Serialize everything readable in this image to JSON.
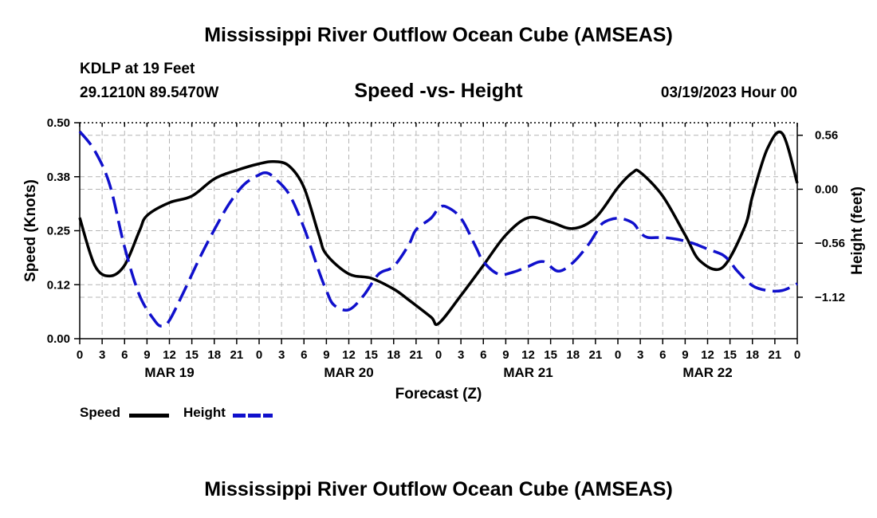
{
  "header": {
    "title": "Mississippi River Outflow Ocean Cube (AMSEAS)",
    "station": "KDLP at 19 Feet",
    "coords": "29.1210N  89.5470W",
    "subtitle": "Speed -vs- Height",
    "date": "03/19/2023 Hour 00"
  },
  "footer": {
    "title": "Mississippi River Outflow Ocean Cube (AMSEAS)"
  },
  "legend": {
    "speed": "Speed",
    "height": "Height"
  },
  "colors": {
    "speed": "#000000",
    "height": "#1010cc",
    "grid": "#b4b4b4"
  },
  "chart_data": {
    "type": "line",
    "title": "Speed -vs- Height",
    "xlabel": "Forecast (Z)",
    "ylabel": "Speed (Knots)",
    "y2label": "Height (feet)",
    "xlim": [
      0,
      96
    ],
    "ylim": [
      0,
      0.5
    ],
    "y2lim": [
      -1.55,
      0.69
    ],
    "yticks": [
      "0.00",
      "0.12",
      "0.25",
      "0.38",
      "0.50"
    ],
    "y2ticks": [
      {
        "value": 0.56,
        "label": "0.56"
      },
      {
        "value": 0.0,
        "label": "0.00"
      },
      {
        "value": -0.56,
        "label": "−0.56"
      },
      {
        "value": -1.12,
        "label": "−1.12"
      }
    ],
    "xticks": [
      "0",
      "3",
      "6",
      "9",
      "12",
      "15",
      "18",
      "21",
      "0",
      "3",
      "6",
      "9",
      "12",
      "15",
      "18",
      "21",
      "0",
      "3",
      "6",
      "9",
      "12",
      "15",
      "18",
      "21",
      "0",
      "3",
      "6",
      "9",
      "12",
      "15",
      "18",
      "21",
      "0"
    ],
    "dates": [
      {
        "hour": 12,
        "label": "MAR 19"
      },
      {
        "hour": 36,
        "label": "MAR 20"
      },
      {
        "hour": 60,
        "label": "MAR 21"
      },
      {
        "hour": 84,
        "label": "MAR 22"
      }
    ],
    "series": [
      {
        "name": "Speed",
        "axis": "left",
        "x": [
          0,
          2,
          4,
          6,
          8,
          9,
          12,
          15,
          18,
          21,
          24,
          26,
          28,
          30,
          32,
          33,
          36,
          39,
          42,
          44,
          47,
          48,
          51,
          54,
          57,
          60,
          63,
          66,
          69,
          72,
          74,
          75,
          78,
          81,
          83,
          86,
          89,
          90,
          92,
          94,
          96
        ],
        "values": [
          0.28,
          0.17,
          0.145,
          0.17,
          0.25,
          0.285,
          0.315,
          0.33,
          0.37,
          0.39,
          0.405,
          0.41,
          0.4,
          0.35,
          0.24,
          0.195,
          0.15,
          0.14,
          0.115,
          0.09,
          0.05,
          0.035,
          0.1,
          0.17,
          0.24,
          0.28,
          0.27,
          0.255,
          0.28,
          0.35,
          0.385,
          0.385,
          0.33,
          0.24,
          0.18,
          0.165,
          0.26,
          0.33,
          0.44,
          0.475,
          0.36
        ]
      },
      {
        "name": "Height",
        "axis": "right",
        "x": [
          0,
          2,
          4,
          6,
          8,
          10,
          11,
          12,
          14,
          16,
          18,
          20,
          22,
          24,
          25,
          26,
          28,
          30,
          32,
          33,
          34,
          36,
          38,
          40,
          42,
          44,
          45,
          47,
          48,
          49,
          51,
          53,
          54,
          56,
          58,
          60,
          62,
          64,
          66,
          68,
          69,
          70,
          72,
          74,
          75,
          76,
          78,
          80,
          82,
          84,
          86,
          87,
          88,
          90,
          92,
          94,
          96
        ],
        "values": [
          0.6,
          0.4,
          0.05,
          -0.6,
          -1.1,
          -1.36,
          -1.42,
          -1.36,
          -1.05,
          -0.72,
          -0.42,
          -0.15,
          0.05,
          0.15,
          0.17,
          0.12,
          -0.05,
          -0.4,
          -0.85,
          -1.05,
          -1.2,
          -1.25,
          -1.1,
          -0.88,
          -0.8,
          -0.58,
          -0.42,
          -0.3,
          -0.2,
          -0.18,
          -0.3,
          -0.6,
          -0.75,
          -0.88,
          -0.86,
          -0.8,
          -0.75,
          -0.85,
          -0.76,
          -0.58,
          -0.46,
          -0.35,
          -0.3,
          -0.35,
          -0.45,
          -0.5,
          -0.5,
          -0.52,
          -0.56,
          -0.62,
          -0.68,
          -0.75,
          -0.85,
          -1.0,
          -1.05,
          -1.05,
          -0.98
        ]
      }
    ]
  }
}
